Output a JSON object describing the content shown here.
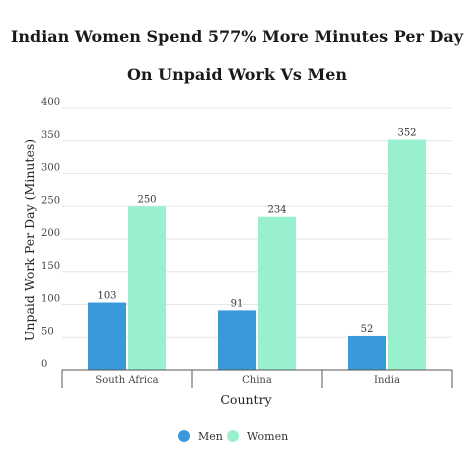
{
  "chart_data": {
    "type": "bar",
    "title": "Indian Women Spend 577% More Minutes Per Day On Unpaid Work Vs Men",
    "xlabel": "Country",
    "ylabel": "Unpaid Work Per Day (Minutes)",
    "categories": [
      "South Africa",
      "China",
      "India"
    ],
    "series": [
      {
        "name": "Men",
        "values": [
          103,
          91,
          52
        ],
        "color": "#3a9ad9"
      },
      {
        "name": "Women",
        "values": [
          250,
          234,
          352
        ],
        "color": "#98f0cf"
      }
    ],
    "ylim": [
      0,
      400
    ],
    "yticks": [
      0,
      50,
      100,
      150,
      200,
      250,
      300,
      350,
      400
    ],
    "grid": true,
    "legend_position": "bottom-center"
  }
}
